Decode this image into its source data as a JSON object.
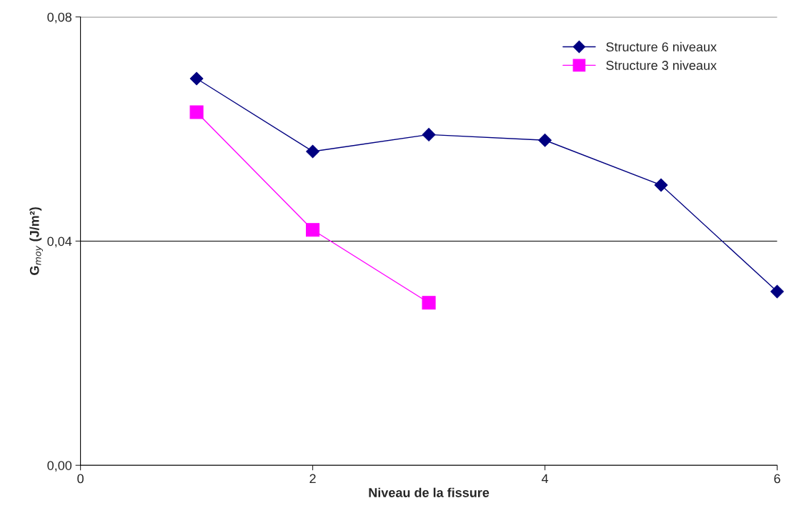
{
  "chart_data": {
    "type": "line",
    "xlabel": "Niveau de la fissure",
    "ylabel": "G$_{moy}$ (J/m²)",
    "xlim": [
      0,
      6
    ],
    "xticks": [
      0,
      2,
      4,
      6
    ],
    "ylim": [
      0,
      0.08
    ],
    "yticks": [
      {
        "value": 0,
        "label": "0,00"
      },
      {
        "value": 0.04,
        "label": "0,04"
      },
      {
        "value": 0.08,
        "label": "0,08"
      }
    ],
    "grid": "y",
    "legend": "top right",
    "series": [
      {
        "name": "Structure 6 niveaux",
        "color": "#000080",
        "marker": "diamond",
        "x": [
          1,
          2,
          3,
          4,
          5,
          6
        ],
        "values": [
          0.069,
          0.056,
          0.059,
          0.058,
          0.05,
          0.031
        ]
      },
      {
        "name": "Structure 3 niveaux",
        "color": "#ff00ff",
        "marker": "square",
        "x": [
          1,
          2,
          3
        ],
        "values": [
          0.063,
          0.042,
          0.029
        ]
      }
    ]
  }
}
